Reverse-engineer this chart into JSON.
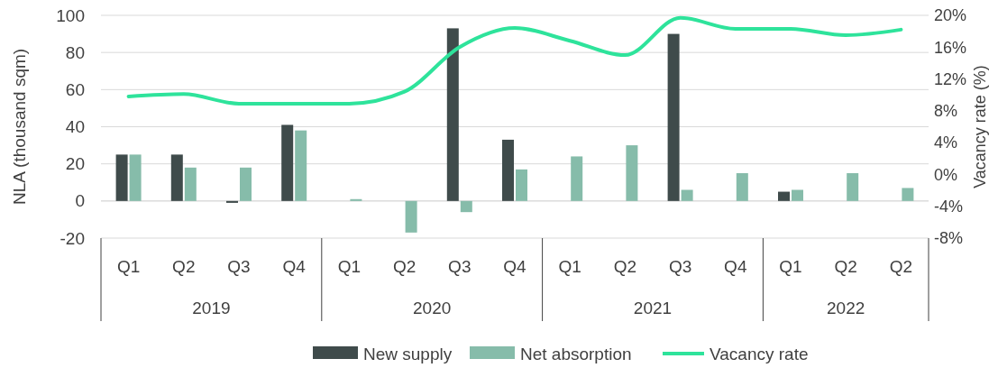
{
  "chart_data": {
    "type": "bar",
    "ylabel": "NLA (thousand sqm)",
    "y2label": "Vacancy rate (%)",
    "categories": [
      "Q1",
      "Q2",
      "Q3",
      "Q4",
      "Q1",
      "Q2",
      "Q3",
      "Q4",
      "Q1",
      "Q2",
      "Q3",
      "Q4",
      "Q1",
      "Q2",
      "Q2"
    ],
    "annotations": [
      "2019",
      "2020",
      "2021",
      "2022"
    ],
    "series": [
      {
        "name": "New supply",
        "color": "#3f4b4b",
        "values": [
          25,
          25,
          -1,
          41,
          null,
          null,
          93,
          33,
          null,
          null,
          90,
          null,
          5,
          null,
          null
        ]
      },
      {
        "name": "Net absorption",
        "color": "#86bcaa",
        "values": [
          25,
          18,
          18,
          38,
          1,
          -17,
          -6,
          17,
          24,
          30,
          6,
          15,
          6,
          15,
          7
        ]
      },
      {
        "name": "Vacancy rate",
        "type": "line",
        "axis": "y2",
        "color": "#2ee39b",
        "values": [
          9.8,
          10.1,
          8.9,
          8.9,
          8.9,
          10.4,
          16.0,
          18.4,
          16.8,
          15.0,
          19.7,
          18.3,
          18.3,
          17.5,
          18.2
        ]
      }
    ],
    "ylim": [
      -20,
      100
    ],
    "yticks": [
      -20,
      0,
      20,
      40,
      60,
      80,
      100
    ],
    "y2lim": [
      -8,
      20
    ],
    "y2ticks": [
      {
        "value": -8,
        "label": "-8%"
      },
      {
        "value": -4,
        "label": "-4%"
      },
      {
        "value": 0,
        "label": "0%"
      },
      {
        "value": 4,
        "label": "4%"
      },
      {
        "value": 8,
        "label": "8%"
      },
      {
        "value": 12,
        "label": "12%"
      },
      {
        "value": 16,
        "label": "16%"
      },
      {
        "value": 20,
        "label": "20%"
      }
    ],
    "grid": "y",
    "legend": "bottom",
    "marker": "none",
    "line_style": "solid"
  }
}
